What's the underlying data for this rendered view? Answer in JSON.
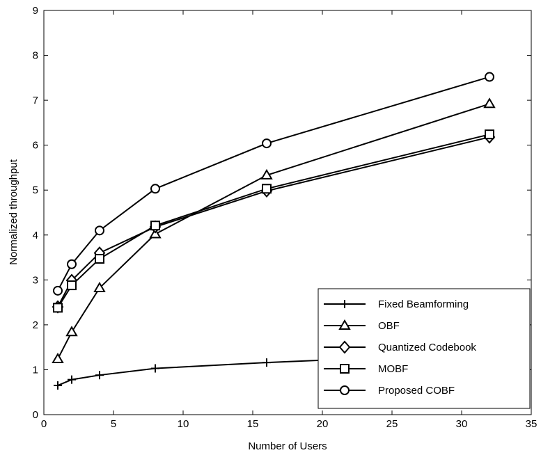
{
  "chart_data": {
    "type": "line",
    "title": "",
    "xlabel": "Number of Users",
    "ylabel": "Normalized throughput",
    "xlim": [
      0,
      35
    ],
    "ylim": [
      0,
      9
    ],
    "xticks": [
      0,
      5,
      10,
      15,
      20,
      25,
      30,
      35
    ],
    "yticks": [
      0,
      1,
      2,
      3,
      4,
      5,
      6,
      7,
      8,
      9
    ],
    "grid": false,
    "legend_position": "bottom-right",
    "x": [
      1,
      2,
      4,
      8,
      16,
      32
    ],
    "series": [
      {
        "name": "Fixed Beamforming",
        "marker": "plus",
        "values": [
          0.65,
          0.78,
          0.88,
          1.03,
          1.16,
          1.37
        ]
      },
      {
        "name": "OBF",
        "marker": "triangle",
        "values": [
          1.24,
          1.84,
          2.82,
          4.02,
          5.33,
          6.92
        ]
      },
      {
        "name": "Quantized Codebook",
        "marker": "diamond",
        "values": [
          2.4,
          2.99,
          3.6,
          4.18,
          4.98,
          6.18
        ]
      },
      {
        "name": "MOBF",
        "marker": "square",
        "values": [
          2.38,
          2.88,
          3.47,
          4.21,
          5.03,
          6.24
        ]
      },
      {
        "name": "Proposed COBF",
        "marker": "circle",
        "values": [
          2.76,
          3.35,
          4.1,
          5.03,
          6.04,
          7.52
        ]
      }
    ],
    "color": "#000000"
  }
}
